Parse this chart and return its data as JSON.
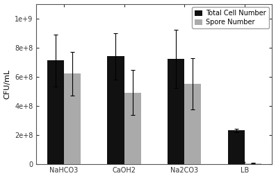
{
  "categories": [
    "NaHCO3",
    "CaOH2",
    "Na2CO3",
    "LB"
  ],
  "total_cell": [
    710000000.0,
    740000000.0,
    720000000.0,
    230000000.0
  ],
  "total_cell_err": [
    180000000.0,
    160000000.0,
    200000000.0,
    12000000.0
  ],
  "spore_number": [
    620000000.0,
    490000000.0,
    550000000.0,
    4000000.0
  ],
  "spore_number_err": [
    150000000.0,
    155000000.0,
    175000000.0,
    3000000.0
  ],
  "bar_color_total": "#111111",
  "bar_color_spore": "#aaaaaa",
  "ylabel": "CFU/mL",
  "ylim": [
    0,
    1100000000.0
  ],
  "yticks": [
    0,
    200000000.0,
    400000000.0,
    600000000.0,
    800000000.0,
    1000000000.0
  ],
  "ytick_labels": [
    "0",
    "2e+8",
    "4e+8",
    "6e+8",
    "8e+8",
    "1e+9"
  ],
  "legend_labels": [
    "Total Cell Number",
    "Spore Number"
  ],
  "bar_width": 0.28,
  "figsize": [
    3.97,
    2.57
  ],
  "dpi": 100
}
